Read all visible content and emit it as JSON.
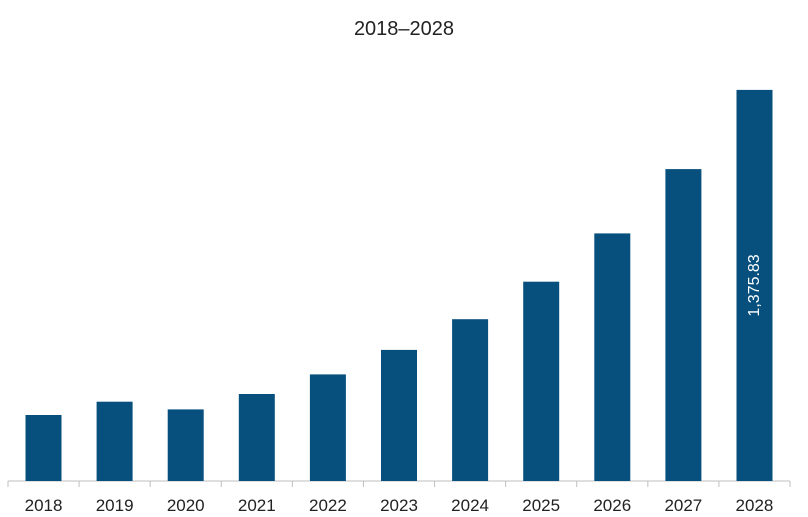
{
  "chart_data": {
    "type": "bar",
    "title": "2018–2028",
    "xlabel": "",
    "ylabel": "",
    "categories": [
      "2018",
      "2019",
      "2020",
      "2021",
      "2022",
      "2023",
      "2024",
      "2025",
      "2026",
      "2027",
      "2028"
    ],
    "values": [
      232,
      279,
      252,
      306,
      375,
      461,
      569,
      701,
      871,
      1097,
      1375.83
    ],
    "data_labels": {
      "2028": "1,375.83"
    },
    "ylim": [
      0,
      1400
    ],
    "grid": false,
    "legend": "none",
    "bar_color": "#07507d",
    "axis_color": "#bfbfbf"
  }
}
